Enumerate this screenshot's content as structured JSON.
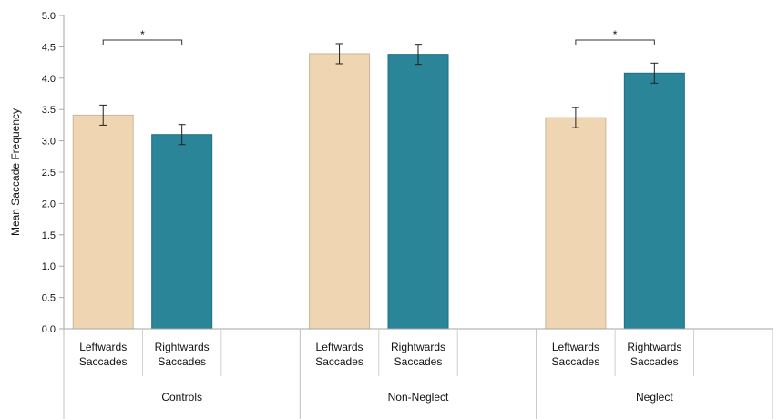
{
  "chart_data": {
    "type": "bar",
    "title": "",
    "ylabel": "Mean Saccade Frequency",
    "xlabel": "",
    "ylim": [
      0,
      5
    ],
    "yticks": [
      "0.0",
      "0.5",
      "1.0",
      "1.5",
      "2.0",
      "2.5",
      "3.0",
      "3.5",
      "4.0",
      "4.5",
      "5.0"
    ],
    "grid": false,
    "legend": "none",
    "groups": [
      {
        "name": "Controls",
        "significance": "*",
        "bars": [
          {
            "label_line1": "Leftwards",
            "label_line2": "Saccades",
            "value": 3.41,
            "error": 0.16,
            "color": "#efd5b2"
          },
          {
            "label_line1": "Rightwards",
            "label_line2": "Saccades",
            "value": 3.1,
            "error": 0.16,
            "color": "#2a8599"
          }
        ]
      },
      {
        "name": "Non-Neglect",
        "significance": "",
        "bars": [
          {
            "label_line1": "Leftwards",
            "label_line2": "Saccades",
            "value": 4.39,
            "error": 0.16,
            "color": "#efd5b2"
          },
          {
            "label_line1": "Rightwards",
            "label_line2": "Saccades",
            "value": 4.38,
            "error": 0.16,
            "color": "#2a8599"
          }
        ]
      },
      {
        "name": "Neglect",
        "significance": "*",
        "bars": [
          {
            "label_line1": "Leftwards",
            "label_line2": "Saccades",
            "value": 3.37,
            "error": 0.16,
            "color": "#efd5b2"
          },
          {
            "label_line1": "Rightwards",
            "label_line2": "Saccades",
            "value": 4.08,
            "error": 0.16,
            "color": "#2a8599"
          }
        ]
      }
    ]
  }
}
